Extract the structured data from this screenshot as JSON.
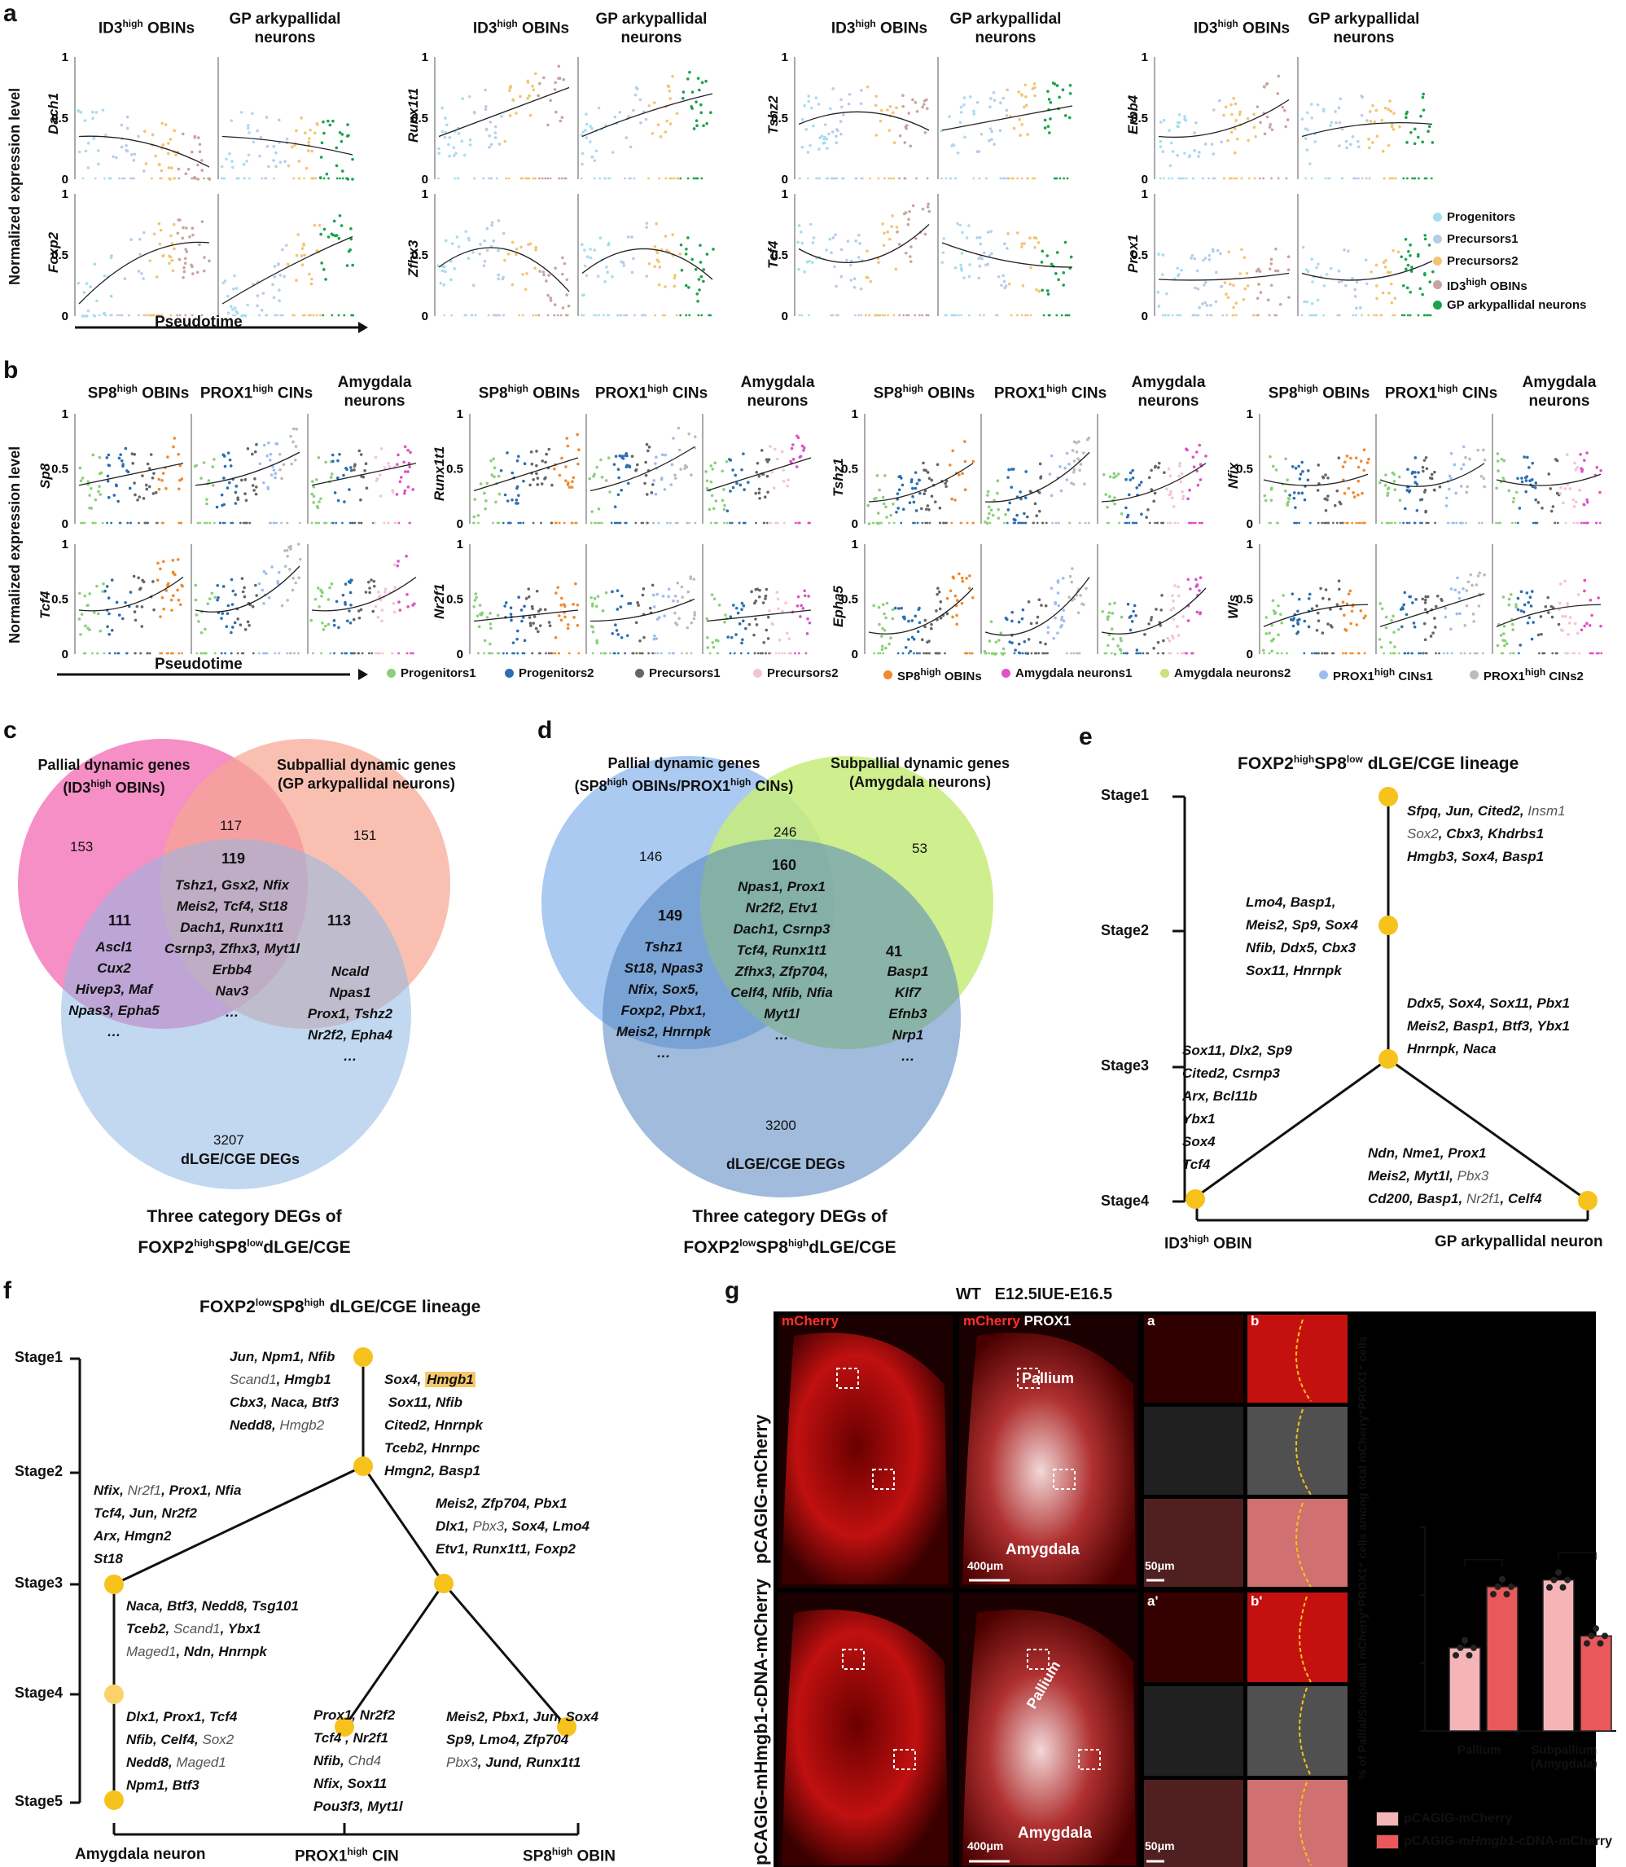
{
  "panels": {
    "a": "a",
    "b": "b",
    "c": "c",
    "d": "d",
    "e": "e",
    "f": "f",
    "g": "g"
  },
  "axis": {
    "ylabel": "Normalized expression level",
    "xlabel": "Pseudotime",
    "t1": "1",
    "t05": "0.5",
    "t0": "0"
  },
  "panel_a": {
    "titles": {
      "id3": "ID3",
      "high": "high",
      "obins": " OBINs",
      "gp": "GP arkypallidal neurons"
    },
    "genes": [
      "Dach1",
      "Foxp2",
      "Runx1t1",
      "Zfhx3",
      "Tshz2",
      "Tcf4",
      "Erbb4",
      "Prox1"
    ],
    "legend": [
      "Progenitors",
      "Precursors1",
      "Precursors2",
      "ID3high OBINs",
      "GP arkypallidal neurons"
    ]
  },
  "panel_b": {
    "titles": {
      "sp8": "SP8",
      "prox1": "PROX1",
      "high": "high",
      "obins": " OBINs",
      "cins": " CINs",
      "amy": "Amygdala neurons"
    },
    "genes": [
      "Sp8",
      "Tcf4",
      "Runx1t1",
      "Nr2f1",
      "Tshz1",
      "Epha5",
      "Nfix",
      "Wls"
    ],
    "legend": [
      "Progenitors1",
      "Progenitors2",
      "Precursors1",
      "Precursors2",
      "SP8high OBINs",
      "Amygdala neurons1",
      "Amygdala neurons2",
      "PROX1high CINs1",
      "PROX1high CINs2"
    ]
  },
  "chart_data": [
    {
      "type": "scatter",
      "title": "Dach1 (a)",
      "ylim": [
        0,
        1
      ],
      "trend": "decreasing",
      "series": [
        {
          "name": "ID3high OBINs",
          "trend": [
            0.35,
            0.3,
            0.1
          ]
        },
        {
          "name": "GP arkypallidal neurons",
          "trend": [
            0.35,
            0.3,
            0.2
          ]
        }
      ]
    },
    {
      "type": "scatter",
      "title": "Foxp2 (a)",
      "ylim": [
        0,
        1
      ],
      "series": [
        {
          "name": "ID3high OBINs",
          "trend": [
            0.1,
            0.5,
            0.6
          ]
        },
        {
          "name": "GP arkypallidal neurons",
          "trend": [
            0.1,
            0.4,
            0.65
          ]
        }
      ]
    },
    {
      "type": "scatter",
      "title": "Runx1t1 (a)",
      "ylim": [
        0,
        1
      ],
      "series": [
        {
          "name": "ID3high OBINs",
          "trend": [
            0.35,
            0.55,
            0.75
          ]
        },
        {
          "name": "GP arkypallidal neurons",
          "trend": [
            0.35,
            0.55,
            0.7
          ]
        }
      ]
    },
    {
      "type": "scatter",
      "title": "Zfhx3 (a)",
      "ylim": [
        0,
        1
      ],
      "series": [
        {
          "name": "ID3high OBINs",
          "trend": [
            0.4,
            0.55,
            0.2
          ]
        },
        {
          "name": "GP arkypallidal neurons",
          "trend": [
            0.35,
            0.55,
            0.3
          ]
        }
      ]
    },
    {
      "type": "scatter",
      "title": "Tshz2 (a)",
      "ylim": [
        0,
        1
      ],
      "series": [
        {
          "name": "ID3high OBINs",
          "trend": [
            0.45,
            0.55,
            0.4
          ]
        },
        {
          "name": "GP arkypallidal neurons",
          "trend": [
            0.4,
            0.5,
            0.6
          ]
        }
      ]
    },
    {
      "type": "scatter",
      "title": "Tcf4 (a)",
      "ylim": [
        0,
        1
      ],
      "series": [
        {
          "name": "ID3high OBINs",
          "trend": [
            0.55,
            0.45,
            0.75
          ]
        },
        {
          "name": "GP arkypallidal neurons",
          "trend": [
            0.6,
            0.45,
            0.4
          ]
        }
      ]
    },
    {
      "type": "scatter",
      "title": "Erbb4 (a)",
      "ylim": [
        0,
        1
      ],
      "series": [
        {
          "name": "ID3high OBINs",
          "trend": [
            0.35,
            0.4,
            0.65
          ]
        },
        {
          "name": "GP arkypallidal neurons",
          "trend": [
            0.35,
            0.45,
            0.45
          ]
        }
      ]
    },
    {
      "type": "scatter",
      "title": "Prox1 (a)",
      "ylim": [
        0,
        1
      ],
      "series": [
        {
          "name": "ID3high OBINs",
          "trend": [
            0.3,
            0.3,
            0.35
          ]
        },
        {
          "name": "GP arkypallidal neurons",
          "trend": [
            0.35,
            0.3,
            0.45
          ]
        }
      ]
    }
  ],
  "panel_c": {
    "left_head": "Pallial dynamic genes",
    "left_sub_pre": "(ID3",
    "left_sub_post": " OBINs)",
    "right_head": "Subpallial dynamic genes",
    "right_sub": "(GP arkypallidal neurons)",
    "n153": "153",
    "n117": "117",
    "n151": "151",
    "n119": "119",
    "n111": "111",
    "n113": "113",
    "n3207": "3207",
    "center": "Tshz1, Gsx2, Nfix\nMeis2, Tcf4, St18\nDach1, Runx1t1\nCsrnp3, Zfhx3, Myt1l\nErbb4\nNav3\n…",
    "left": "Ascl1\nCux2\nHivep3, Maf\nNpas3, Epha5\n…",
    "right": "Ncald\nNpas1\nProx1, Tshz2\nNr2f2, Epha4\n…",
    "bottom": "dLGE/CGE DEGs",
    "caption1": "Three category DEGs of",
    "caption2_a": "FOXP2",
    "caption2_b": "SP8",
    "caption2_c": "dLGE/CGE",
    "high": "high",
    "low": "low"
  },
  "panel_d": {
    "left_head": "Pallial dynamic genes",
    "left_sub": "(SP8high OBINs/PROX1high CINs)",
    "right_head": "Subpallial dynamic genes",
    "right_sub": "(Amygdala neurons)",
    "n146": "146",
    "n246": "246",
    "n53": "53",
    "n160": "160",
    "n149": "149",
    "n41": "41",
    "n3200": "3200",
    "center": "Npas1, Prox1\nNr2f2, Etv1\nDach1, Csrnp3\nTcf4, Runx1t1\nZfhx3, Zfp704,\nCelf4, Nfib, Nfia\nMyt1l\n…",
    "left": "Tshz1\nSt18, Npas3\nNfix, Sox5,\nFoxp2, Pbx1,\nMeis2, Hnrnpk\n…",
    "right": "Basp1\nKlf7\nEfnb3\nNrp1\n…",
    "bottom": "dLGE/CGE DEGs",
    "caption1": "Three category DEGs of",
    "caption2": "FOXP2lowSP8highdLGE/CGE"
  },
  "panel_e": {
    "title": "FOXP2highSP8low dLGE/CGE lineage",
    "stages": [
      "Stage1",
      "Stage2",
      "Stage3",
      "Stage4"
    ],
    "leaves": [
      "ID3high OBIN",
      "GP arkypallidal neuron"
    ]
  },
  "panel_f": {
    "title": "FOXP2lowSP8high dLGE/CGE lineage",
    "stages": [
      "Stage1",
      "Stage2",
      "Stage3",
      "Stage4",
      "Stage5"
    ],
    "leaves": [
      "Amygdala neuron",
      "PROX1high CIN",
      "SP8high OBIN"
    ]
  },
  "panel_g": {
    "header": "WT   E12.5IUE-E16.5",
    "row1": "pCAGIG-mCherry",
    "row2": "pCAGIG-mHmgb1-cDNA-mCherry",
    "col1": "mCherry",
    "col2a": "mCherry",
    "col2b": " PROX1",
    "pallium": "Pallium",
    "amygdala": "Amygdala",
    "scale1": "400μm",
    "scale2": "50μm",
    "ins_a": "a",
    "ins_b": "b",
    "ins_a2": "a'",
    "ins_b2": "b'",
    "bar": {
      "ylabel": "% of Pallial/Subpallial mCherry⁺PROX1⁺ cells among total mCherry⁺PROX1⁺ cells",
      "yticks": [
        "0",
        "20",
        "40",
        "60"
      ],
      "groups": [
        "Pallium",
        "Subpallium\n(Amygdala)"
      ],
      "values_mCherry": [
        24.5,
        44.5
      ],
      "values_Hmgb1": [
        42.5,
        28
      ],
      "sig": [
        "****",
        "**"
      ],
      "legend": [
        "pCAGIG-mCherry",
        "pCAGIG-mHmgb1-cDNA-mCherry"
      ]
    }
  }
}
